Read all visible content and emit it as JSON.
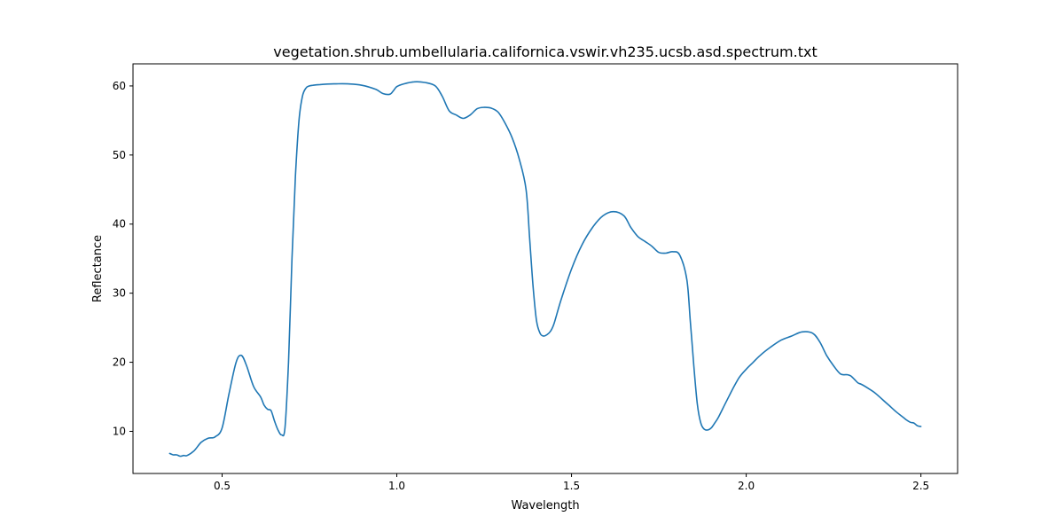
{
  "chart_data": {
    "type": "line",
    "title": "vegetation.shrub.umbellularia.californica.vswir.vh235.ucsb.asd.spectrum.txt",
    "xlabel": "Wavelength",
    "ylabel": "Reflectance",
    "xlim": [
      0.245,
      2.605
    ],
    "ylim": [
      3.9,
      63.2
    ],
    "xticks": [
      {
        "value": 0.5,
        "label": "0.5"
      },
      {
        "value": 1.0,
        "label": "1.0"
      },
      {
        "value": 1.5,
        "label": "1.5"
      },
      {
        "value": 2.0,
        "label": "2.0"
      },
      {
        "value": 2.5,
        "label": "2.5"
      }
    ],
    "yticks": [
      {
        "value": 10,
        "label": "10"
      },
      {
        "value": 20,
        "label": "20"
      },
      {
        "value": 30,
        "label": "30"
      },
      {
        "value": 40,
        "label": "40"
      },
      {
        "value": 50,
        "label": "50"
      },
      {
        "value": 60,
        "label": "60"
      }
    ],
    "grid": false,
    "color": "#1f77b4",
    "series": [
      {
        "x": [
          0.35,
          0.36,
          0.37,
          0.38,
          0.39,
          0.4,
          0.42,
          0.44,
          0.46,
          0.48,
          0.5,
          0.52,
          0.54,
          0.555,
          0.57,
          0.59,
          0.61,
          0.62,
          0.63,
          0.64,
          0.65,
          0.66,
          0.67,
          0.68,
          0.69,
          0.7,
          0.71,
          0.72,
          0.73,
          0.74,
          0.75,
          0.76,
          0.78,
          0.82,
          0.86,
          0.9,
          0.94,
          0.96,
          0.98,
          0.99,
          1.0,
          1.02,
          1.05,
          1.08,
          1.11,
          1.13,
          1.15,
          1.17,
          1.19,
          1.21,
          1.23,
          1.25,
          1.27,
          1.29,
          1.31,
          1.33,
          1.35,
          1.37,
          1.38,
          1.39,
          1.4,
          1.41,
          1.42,
          1.43,
          1.44,
          1.45,
          1.47,
          1.5,
          1.53,
          1.56,
          1.59,
          1.62,
          1.65,
          1.67,
          1.69,
          1.71,
          1.73,
          1.75,
          1.77,
          1.79,
          1.81,
          1.83,
          1.84,
          1.85,
          1.86,
          1.87,
          1.88,
          1.89,
          1.9,
          1.91,
          1.92,
          1.94,
          1.96,
          1.98,
          2.0,
          2.02,
          2.04,
          2.07,
          2.1,
          2.13,
          2.16,
          2.19,
          2.21,
          2.23,
          2.25,
          2.27,
          2.29,
          2.3,
          2.31,
          2.32,
          2.33,
          2.35,
          2.37,
          2.39,
          2.41,
          2.43,
          2.45,
          2.46,
          2.47,
          2.48,
          2.49,
          2.5
        ],
        "y": [
          6.8,
          6.6,
          6.6,
          6.4,
          6.5,
          6.5,
          7.2,
          8.4,
          9.0,
          9.2,
          10.5,
          15.5,
          20.0,
          21.0,
          19.5,
          16.5,
          15.0,
          13.8,
          13.2,
          13.0,
          11.5,
          10.2,
          9.5,
          10.5,
          20.0,
          35.0,
          47.0,
          55.0,
          58.5,
          59.7,
          60.0,
          60.1,
          60.2,
          60.3,
          60.3,
          60.1,
          59.5,
          58.9,
          58.8,
          59.3,
          59.9,
          60.3,
          60.6,
          60.5,
          60.0,
          58.5,
          56.4,
          55.8,
          55.3,
          55.8,
          56.7,
          56.9,
          56.8,
          56.2,
          54.6,
          52.5,
          49.5,
          45.0,
          38.0,
          31.0,
          26.0,
          24.2,
          23.8,
          24.0,
          24.5,
          25.6,
          29.0,
          33.5,
          37.0,
          39.5,
          41.2,
          41.8,
          41.2,
          39.5,
          38.2,
          37.5,
          36.8,
          35.9,
          35.8,
          36.0,
          35.5,
          32.0,
          26.0,
          19.5,
          14.0,
          11.2,
          10.3,
          10.2,
          10.5,
          11.2,
          12.0,
          14.0,
          16.0,
          17.8,
          19.0,
          20.0,
          21.0,
          22.2,
          23.2,
          23.8,
          24.4,
          24.2,
          23.0,
          21.0,
          19.5,
          18.3,
          18.2,
          18.0,
          17.5,
          17.0,
          16.8,
          16.2,
          15.5,
          14.6,
          13.7,
          12.8,
          12.0,
          11.6,
          11.3,
          11.2,
          10.8,
          10.7
        ]
      }
    ]
  }
}
